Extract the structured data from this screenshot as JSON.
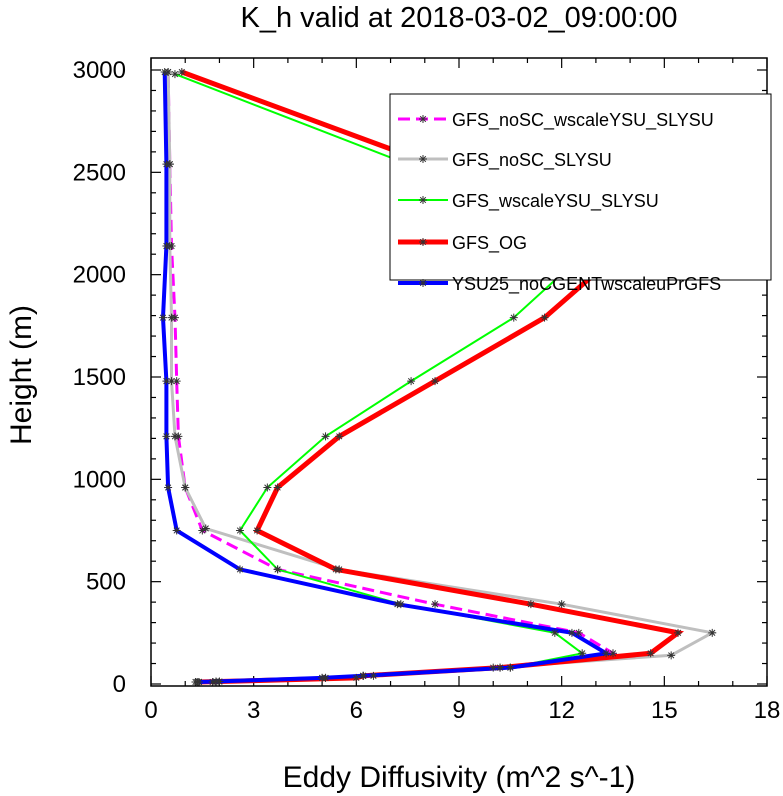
{
  "chart_data": {
    "type": "line",
    "title": "K_h valid at 2018-03-02_09:00:00",
    "xlabel": "Eddy Diffusivity (m^2 s^-1)",
    "ylabel": "Height (m)",
    "xlim": [
      0,
      18
    ],
    "ylim": [
      0,
      3000
    ],
    "xticks": [
      "0",
      "3",
      "6",
      "9",
      "12",
      "15",
      "18"
    ],
    "yticks": [
      "0",
      "500",
      "1000",
      "1500",
      "2000",
      "2500",
      "3000"
    ],
    "legend_position": "top-right",
    "series": [
      {
        "name": "GFS_noSC_wscaleYSU_SLYSU",
        "color": "#ff00ff",
        "style": "dashed",
        "width": 3,
        "points": [
          [
            1.35,
            10
          ],
          [
            1.8,
            10
          ],
          [
            5.1,
            30
          ],
          [
            6.5,
            40
          ],
          [
            10.2,
            80
          ],
          [
            13.5,
            150
          ],
          [
            12.5,
            250
          ],
          [
            8.3,
            390
          ],
          [
            3.7,
            560
          ],
          [
            1.5,
            750
          ],
          [
            1.0,
            960
          ],
          [
            0.8,
            1210
          ],
          [
            0.75,
            1480
          ],
          [
            0.7,
            1790
          ],
          [
            0.6,
            2140
          ],
          [
            0.55,
            2540
          ],
          [
            0.5,
            2990
          ]
        ]
      },
      {
        "name": "GFS_noSC_SLYSU",
        "color": "#bfbfbf",
        "style": "solid",
        "width": 3,
        "points": [
          [
            1.3,
            10
          ],
          [
            2.0,
            12
          ],
          [
            5.0,
            30
          ],
          [
            6.2,
            40
          ],
          [
            10.0,
            80
          ],
          [
            15.2,
            140
          ],
          [
            16.4,
            250
          ],
          [
            12.0,
            390
          ],
          [
            5.5,
            560
          ],
          [
            1.6,
            760
          ],
          [
            1.0,
            960
          ],
          [
            0.7,
            1210
          ],
          [
            0.6,
            1480
          ],
          [
            0.6,
            1790
          ],
          [
            0.55,
            2140
          ],
          [
            0.55,
            2540
          ],
          [
            0.5,
            2990
          ]
        ]
      },
      {
        "name": "GFS_wscaleYSU_SLYSU",
        "color": "#00ff00",
        "style": "solid",
        "width": 2,
        "points": [
          [
            1.4,
            10
          ],
          [
            1.9,
            12
          ],
          [
            5.1,
            30
          ],
          [
            6.2,
            40
          ],
          [
            10.5,
            80
          ],
          [
            12.6,
            150
          ],
          [
            11.8,
            250
          ],
          [
            7.3,
            390
          ],
          [
            3.7,
            560
          ],
          [
            2.6,
            750
          ],
          [
            3.4,
            960
          ],
          [
            5.1,
            1210
          ],
          [
            7.6,
            1480
          ],
          [
            10.6,
            1790
          ],
          [
            12.9,
            2140
          ],
          [
            7.5,
            2540
          ],
          [
            0.7,
            2980
          ]
        ]
      },
      {
        "name": "GFS_OG",
        "color": "#ff0000",
        "style": "solid",
        "width": 5,
        "points": [
          [
            1.4,
            10
          ],
          [
            2.0,
            12
          ],
          [
            6.0,
            30
          ],
          [
            6.2,
            40
          ],
          [
            10.2,
            80
          ],
          [
            14.6,
            150
          ],
          [
            15.4,
            250
          ],
          [
            11.1,
            390
          ],
          [
            5.4,
            560
          ],
          [
            3.1,
            750
          ],
          [
            3.7,
            960
          ],
          [
            5.5,
            1210
          ],
          [
            8.3,
            1480
          ],
          [
            11.5,
            1790
          ],
          [
            13.9,
            2140
          ],
          [
            8.2,
            2540
          ],
          [
            0.9,
            2990
          ]
        ]
      },
      {
        "name": "YSU25_noCGENTwscaleuPrGFS",
        "color": "#0000ff",
        "style": "solid",
        "width": 4,
        "points": [
          [
            1.4,
            10
          ],
          [
            1.9,
            12
          ],
          [
            5.0,
            30
          ],
          [
            6.2,
            40
          ],
          [
            10.5,
            80
          ],
          [
            13.3,
            150
          ],
          [
            12.3,
            250
          ],
          [
            7.2,
            390
          ],
          [
            2.6,
            560
          ],
          [
            0.75,
            750
          ],
          [
            0.5,
            960
          ],
          [
            0.45,
            1210
          ],
          [
            0.45,
            1480
          ],
          [
            0.35,
            1790
          ],
          [
            0.45,
            2140
          ],
          [
            0.45,
            2540
          ],
          [
            0.4,
            2990
          ]
        ]
      }
    ]
  }
}
